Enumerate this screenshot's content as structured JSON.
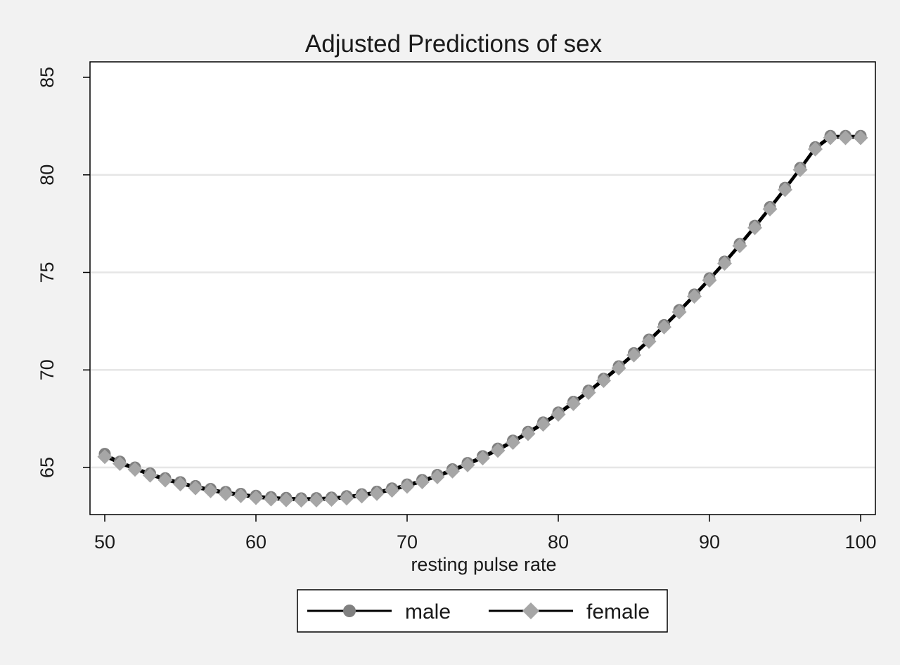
{
  "chart_data": {
    "type": "line",
    "title": "Adjusted Predictions of sex",
    "xlabel": "resting pulse rate",
    "ylabel": "",
    "xlim": [
      50,
      100
    ],
    "ylim": [
      62.5,
      85.5
    ],
    "xticks": [
      50,
      60,
      70,
      80,
      90,
      100
    ],
    "yticks": [
      65,
      70,
      75,
      80,
      85
    ],
    "x": [
      50,
      51,
      52,
      53,
      54,
      55,
      56,
      57,
      58,
      59,
      60,
      61,
      62,
      63,
      64,
      65,
      66,
      67,
      68,
      69,
      70,
      71,
      72,
      73,
      74,
      75,
      76,
      77,
      78,
      79,
      80,
      81,
      82,
      83,
      84,
      85,
      86,
      87,
      88,
      89,
      90,
      91,
      92,
      93,
      94,
      95,
      96,
      97,
      98,
      99,
      100
    ],
    "series": [
      {
        "name": "male",
        "marker": "circle",
        "color": "#808080",
        "values": [
          65.7,
          65.3,
          65.0,
          64.7,
          64.45,
          64.25,
          64.05,
          63.9,
          63.75,
          63.65,
          63.55,
          63.48,
          63.44,
          63.42,
          63.43,
          63.46,
          63.53,
          63.63,
          63.76,
          63.93,
          64.13,
          64.36,
          64.62,
          64.91,
          65.23,
          65.58,
          65.97,
          66.38,
          66.83,
          67.31,
          67.82,
          68.37,
          68.94,
          69.55,
          70.19,
          70.86,
          71.56,
          72.3,
          73.07,
          73.87,
          74.7,
          75.56,
          76.46,
          77.39,
          78.35,
          79.34,
          80.36,
          81.42,
          82.0,
          82.0,
          82.0
        ]
      },
      {
        "name": "female",
        "marker": "diamond",
        "color": "#a6a6a6",
        "values": [
          65.55,
          65.2,
          64.9,
          64.6,
          64.35,
          64.15,
          63.95,
          63.8,
          63.65,
          63.55,
          63.45,
          63.38,
          63.34,
          63.32,
          63.33,
          63.36,
          63.43,
          63.53,
          63.66,
          63.83,
          64.03,
          64.26,
          64.52,
          64.81,
          65.13,
          65.48,
          65.87,
          66.28,
          66.73,
          67.21,
          67.72,
          68.27,
          68.84,
          69.45,
          70.09,
          70.76,
          71.46,
          72.2,
          72.97,
          73.77,
          74.6,
          75.46,
          76.36,
          77.29,
          78.25,
          79.24,
          80.26,
          81.32,
          81.9,
          81.9,
          81.9
        ]
      }
    ],
    "grid": true,
    "legend": "bottom"
  }
}
